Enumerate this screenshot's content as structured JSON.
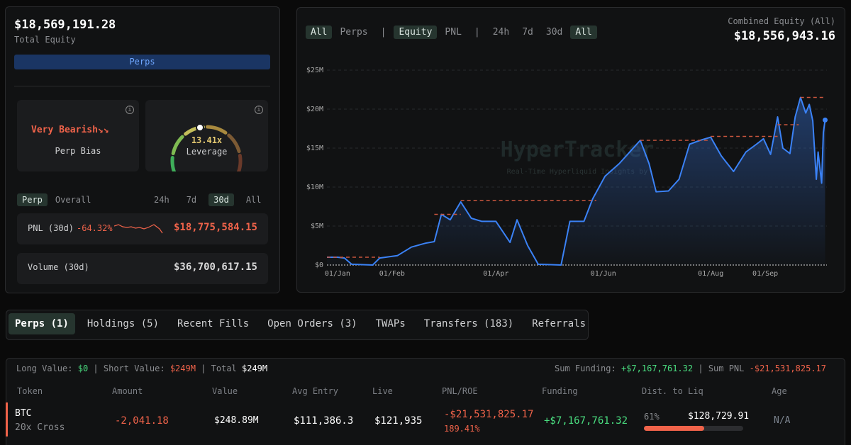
{
  "summary": {
    "total_equity": "$18,569,191.28",
    "total_equity_label": "Total Equity",
    "tab": "Perps"
  },
  "bias": {
    "label": "Very Bearish",
    "caption": "Perp Bias"
  },
  "leverage": {
    "value": "13.41x",
    "caption": "Leverage"
  },
  "period_tabs": {
    "scope": [
      "Perp",
      "Overall"
    ],
    "ranges": [
      "24h",
      "7d",
      "30d",
      "All"
    ]
  },
  "pnl": {
    "label": "PNL (30d)",
    "change": "-64.32%",
    "amount": "$18,775,584.15"
  },
  "volume": {
    "label": "Volume (30d)",
    "amount": "$36,700,617.15"
  },
  "chart_panel": {
    "view_filters": [
      "All",
      "Perps"
    ],
    "metric_filters": [
      "Equity",
      "PNL"
    ],
    "range_filters": [
      "24h",
      "7d",
      "30d",
      "All"
    ],
    "combined_label": "Combined Equity (All)",
    "combined_value": "$18,556,943.16",
    "watermark": "HyperTracker",
    "watermark_sub": "Real-Time Hyperliquid Insights by"
  },
  "chart_data": {
    "type": "line",
    "x": [
      -6,
      0,
      4,
      8,
      20,
      24,
      34,
      42,
      50,
      55,
      59,
      64,
      70,
      76,
      82,
      90,
      98,
      102,
      108,
      114,
      127,
      132,
      140,
      145,
      152,
      160,
      168,
      172,
      177,
      181,
      188,
      194,
      200,
      206,
      212,
      218,
      225,
      232,
      238,
      242,
      246,
      250,
      253,
      257,
      260,
      263,
      266,
      268,
      270,
      272,
      273,
      275,
      276,
      277
    ],
    "series": [
      {
        "name": "Equity",
        "color": "#3b82f6",
        "values": [
          1.0,
          1.0,
          0.9,
          0.1,
          0.0,
          0.9,
          1.2,
          2.3,
          2.8,
          3.0,
          6.5,
          5.8,
          8.1,
          6.0,
          5.6,
          5.6,
          2.9,
          5.8,
          2.5,
          0.1,
          0.0,
          5.6,
          5.6,
          8.5,
          11.4,
          13.0,
          15.0,
          16.0,
          13.0,
          9.4,
          9.5,
          11.0,
          15.5,
          16.0,
          16.4,
          14.0,
          12.0,
          14.5,
          15.5,
          16.2,
          14.2,
          19.0,
          15.0,
          14.3,
          19.0,
          21.5,
          19.5,
          20.6,
          18.5,
          11.0,
          14.5,
          10.5,
          17.0,
          18.6
        ]
      }
    ],
    "drawdown_lines": [
      {
        "start": -6,
        "end": 24,
        "value": 1.0
      },
      {
        "start": 55,
        "end": 70,
        "value": 6.5
      },
      {
        "start": 70,
        "end": 147,
        "value": 8.3
      },
      {
        "start": 172,
        "end": 212,
        "value": 16.0
      },
      {
        "start": 212,
        "end": 250,
        "value": 16.5
      },
      {
        "start": 250,
        "end": 262,
        "value": 18.0
      },
      {
        "start": 263,
        "end": 277,
        "value": 21.5
      }
    ],
    "xlim": [
      -6,
      278
    ],
    "xticks": [
      {
        "value": 0,
        "label": "01/Jan"
      },
      {
        "value": 31,
        "label": "01/Feb"
      },
      {
        "value": 90,
        "label": "01/Apr"
      },
      {
        "value": 151,
        "label": "01/Jun"
      },
      {
        "value": 212,
        "label": "01/Aug"
      },
      {
        "value": 243,
        "label": "01/Sep"
      }
    ],
    "ylim": [
      0,
      25
    ],
    "yticks": [
      {
        "value": 0,
        "label": "$0"
      },
      {
        "value": 5,
        "label": "$5M"
      },
      {
        "value": 10,
        "label": "$10M"
      },
      {
        "value": 15,
        "label": "$15M"
      },
      {
        "value": 20,
        "label": "$20M"
      },
      {
        "value": 25,
        "label": "$25M"
      }
    ],
    "grid": true
  },
  "bottom_tabs": [
    "Perps (1)",
    "Holdings (5)",
    "Recent Fills",
    "Open Orders (3)",
    "TWAPs",
    "Transfers (183)",
    "Referrals"
  ],
  "positions": {
    "long_label": "Long Value:",
    "long_value": "$0",
    "short_label": "Short Value:",
    "short_value": "$249M",
    "total_label": "Total",
    "total_value": "$249M",
    "funding_label": "Sum Funding:",
    "funding_value": "+$7,167,761.32",
    "pnl_label": "Sum PNL",
    "pnl_value": "-$21,531,825.17",
    "headers": [
      "Token",
      "Amount",
      "Value",
      "Avg Entry",
      "Live",
      "PNL/ROE",
      "Funding",
      "Dist. to Liq",
      "Age"
    ],
    "rows": [
      {
        "token": "BTC",
        "margin": "20x Cross",
        "amount": "-2,041.18",
        "value": "$248.89M",
        "avg_entry": "$111,386.3",
        "live": "$121,935",
        "pnl": "-$21,531,825.17",
        "roe": "189.41%",
        "funding": "+$7,167,761.32",
        "dist_pct": {
          "value": 61,
          "label": "61%"
        },
        "liq_price": "$128,729.91",
        "age": "N/A"
      }
    ]
  }
}
